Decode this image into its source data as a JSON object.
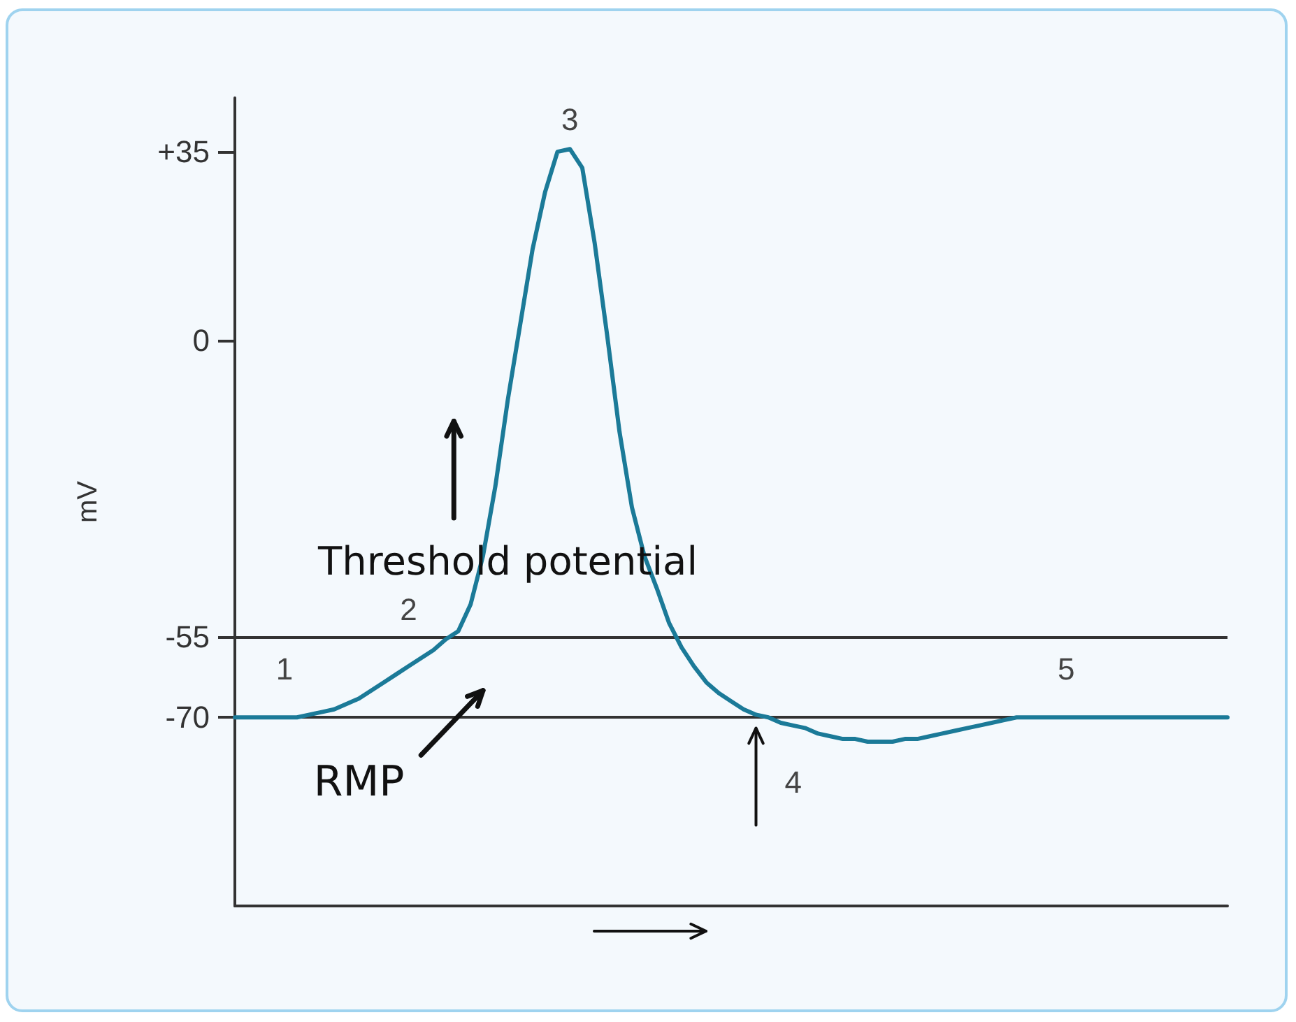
{
  "chart_data": {
    "type": "line",
    "ylabel": "mV",
    "categories": [
      null,
      null,
      null,
      null,
      null,
      null,
      null,
      null,
      null,
      null,
      null,
      null,
      null,
      null,
      null,
      null,
      null,
      null,
      null,
      null,
      null,
      null,
      null,
      null,
      null,
      null,
      null,
      null,
      null,
      null,
      null,
      null,
      null,
      null,
      null,
      null,
      null,
      null,
      null,
      null,
      null,
      null,
      null,
      null,
      null,
      null,
      null,
      null,
      null,
      null,
      null,
      null,
      null,
      null,
      null,
      null,
      null,
      null,
      null,
      null,
      null,
      null,
      null,
      null,
      null,
      null,
      null,
      null,
      null,
      null,
      null,
      null,
      null,
      null,
      null,
      null,
      null,
      null,
      null,
      null,
      null
    ],
    "series": [
      {
        "color": "#1b7a98",
        "values": [
          -70,
          -70,
          -70,
          -70,
          -70,
          -70,
          -69.5,
          -69,
          -68.5,
          -67.5,
          -66.5,
          -65,
          -63.5,
          -62,
          -60.5,
          -59,
          -57.5,
          -55.5,
          -54,
          -49,
          -40,
          -27,
          -11,
          3,
          17,
          27.5,
          35,
          35.5,
          32,
          18,
          1,
          -17,
          -31,
          -40,
          -46,
          -52.5,
          -57,
          -60.5,
          -63.5,
          -65.5,
          -67,
          -68.5,
          -69.5,
          -70,
          -71,
          -71.5,
          -72,
          -73,
          -73.5,
          -74,
          -74,
          -74.5,
          -74.5,
          -74.5,
          -74,
          -74,
          -73.5,
          -73,
          -72.5,
          -72,
          -71.5,
          -71,
          -70.5,
          -70,
          -70,
          -70,
          -70,
          -70,
          -70,
          -70,
          -70,
          -70,
          -70,
          -70,
          -70,
          -70,
          -70,
          -70,
          -70,
          -70,
          -70
        ]
      }
    ],
    "ylim": [
      -105,
      45
    ],
    "yticks": [
      {
        "value": 35,
        "label": "+35"
      },
      0,
      -55,
      -70
    ],
    "ref_lines": [
      {
        "axis": "y",
        "value": -55,
        "color": "#333333"
      },
      {
        "axis": "y",
        "value": -70,
        "color": "#333333"
      }
    ],
    "annotations": [
      "1",
      "2",
      "3",
      "4",
      "5",
      "Threshold potential",
      "RMP"
    ],
    "grid": false,
    "marker": "none",
    "line_style": "solid"
  }
}
